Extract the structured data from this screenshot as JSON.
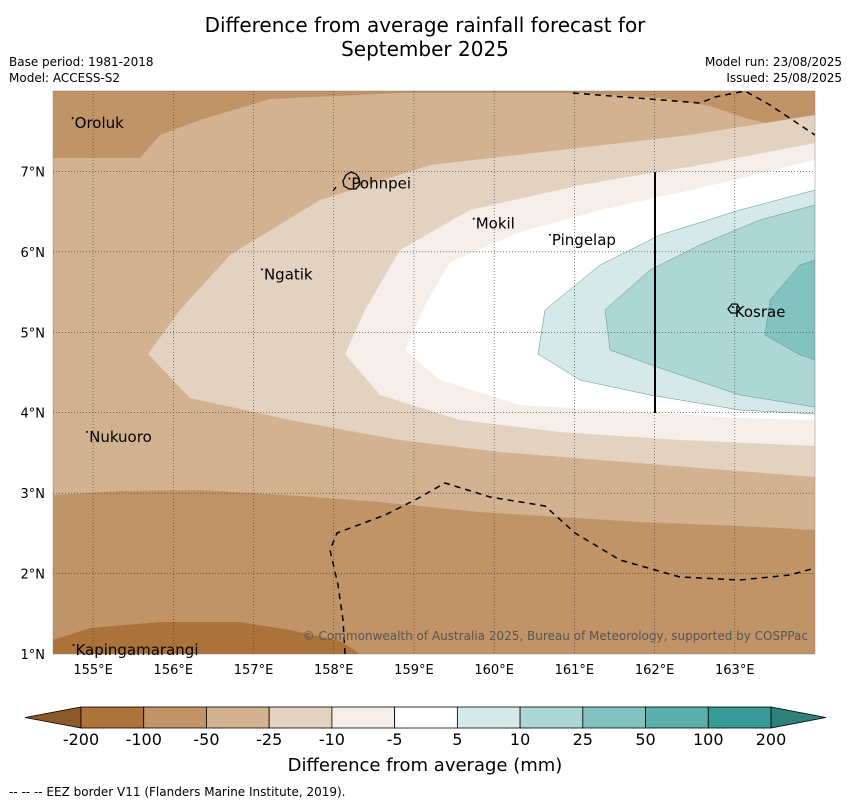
{
  "header": {
    "title_line1": "Difference from average rainfall forecast for",
    "title_line2": "September 2025",
    "base_period": "Base period: 1981-2018",
    "model": "Model: ACCESS-S2",
    "model_run": "Model run: 23/08/2025",
    "issued": "Issued: 25/08/2025"
  },
  "map": {
    "lon_range": [
      154.5,
      164.0
    ],
    "lat_range": [
      1.0,
      8.0
    ],
    "grid": true,
    "x_ticks": [
      "155°E",
      "156°E",
      "157°E",
      "158°E",
      "159°E",
      "160°E",
      "161°E",
      "162°E",
      "163°E"
    ],
    "y_ticks": [
      "1°N",
      "2°N",
      "3°N",
      "4°N",
      "5°N",
      "6°N",
      "7°N"
    ],
    "places": [
      {
        "name": "Oroluk",
        "lon": 154.77,
        "lat": 7.6
      },
      {
        "name": "Pohnpei",
        "lon": 158.22,
        "lat": 6.85
      },
      {
        "name": "Mokil",
        "lon": 159.77,
        "lat": 6.35
      },
      {
        "name": "Pingelap",
        "lon": 160.72,
        "lat": 6.15
      },
      {
        "name": "Ngatik",
        "lon": 157.13,
        "lat": 5.72
      },
      {
        "name": "Kosrae",
        "lon": 163.0,
        "lat": 5.25
      },
      {
        "name": "Nukuoro",
        "lon": 154.95,
        "lat": 3.7
      },
      {
        "name": "Kapingamarangi",
        "lon": 154.78,
        "lat": 1.05
      }
    ],
    "copyright": "© Commonwealth of Australia 2025, Bureau of Meteorology, supported by COSPPac"
  },
  "colorbar": {
    "labels": [
      "-200",
      "-100",
      "-50",
      "-25",
      "-10",
      "-5",
      "5",
      "10",
      "25",
      "50",
      "100",
      "200"
    ],
    "colors": [
      "#ab733a",
      "#ac733a",
      "#c19468",
      "#d2b290",
      "#e4d2c0",
      "#f5eee9",
      "#ffffff",
      "#d5e9e8",
      "#acd7d5",
      "#82c3c0",
      "#5aaeab",
      "#369b97"
    ],
    "extend_low": "#8a5a2b",
    "extend_high": "#2f7f7b",
    "title": "Difference from average (mm)"
  },
  "legend": {
    "eez_text": "--  --  -- EEZ border V11 (Flanders Marine Institute, 2019)."
  }
}
